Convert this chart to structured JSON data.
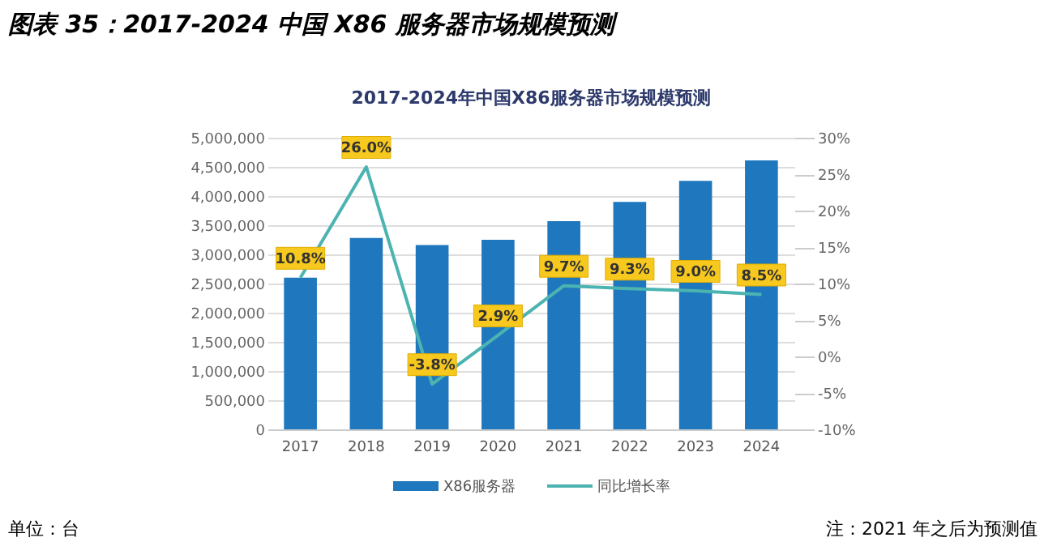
{
  "chart_data": {
    "type": "bar",
    "title": "图表 35：2017-2024 中国 X86 服务器市场规模预测",
    "subtitle": "2017-2024年中国X86服务器市场规模预测",
    "categories": [
      "2017",
      "2018",
      "2019",
      "2020",
      "2021",
      "2022",
      "2023",
      "2024"
    ],
    "series": [
      {
        "name": "X86服务器",
        "color": "#1f77bd",
        "values": [
          2600000,
          3280000,
          3160000,
          3250000,
          3570000,
          3900000,
          4260000,
          4610000
        ]
      },
      {
        "name": "同比增长率",
        "type": "line",
        "axis": "y2",
        "color": "#4bb4b1",
        "values": [
          10.8,
          26.0,
          -3.8,
          2.9,
          9.7,
          9.3,
          9.0,
          8.5
        ],
        "value_labels": [
          "10.8%",
          "26.0%",
          "-3.8%",
          "2.9%",
          "9.7%",
          "9.3%",
          "9.0%",
          "8.5%"
        ]
      }
    ],
    "ylim": [
      0,
      5000000
    ],
    "yticks": [
      {
        "value": 0,
        "label": "0"
      },
      {
        "value": 500000,
        "label": "500,000"
      },
      {
        "value": 1000000,
        "label": "1,000,000"
      },
      {
        "value": 1500000,
        "label": "1,500,000"
      },
      {
        "value": 2000000,
        "label": "2,000,000"
      },
      {
        "value": 2500000,
        "label": "2,500,000"
      },
      {
        "value": 3000000,
        "label": "3,000,000"
      },
      {
        "value": 3500000,
        "label": "3,500,000"
      },
      {
        "value": 4000000,
        "label": "4,000,000"
      },
      {
        "value": 4500000,
        "label": "4,500,000"
      },
      {
        "value": 5000000,
        "label": "5,000,000"
      }
    ],
    "y2lim": [
      -10,
      30
    ],
    "y2ticks": [
      {
        "value": -10,
        "label": "-10%"
      },
      {
        "value": -5,
        "label": "-5%"
      },
      {
        "value": 0,
        "label": "0%"
      },
      {
        "value": 5,
        "label": "5%"
      },
      {
        "value": 10,
        "label": "10%"
      },
      {
        "value": 15,
        "label": "15%"
      },
      {
        "value": 20,
        "label": "20%"
      },
      {
        "value": 25,
        "label": "25%"
      },
      {
        "value": 30,
        "label": "30%"
      }
    ],
    "grid": "y",
    "legend": "bottom",
    "marker": "none",
    "line_style": "solid",
    "annotations": [
      "单位：台",
      "注：2021 年之后为预测值"
    ]
  }
}
